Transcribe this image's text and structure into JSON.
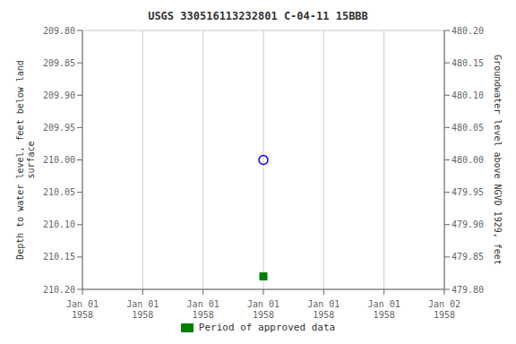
{
  "chart_data": {
    "type": "scatter",
    "title": "USGS 330516113232801 C-04-11 15BBB",
    "categories": [
      "Jan 01\n1958",
      "Jan 01\n1958",
      "Jan 01\n1958",
      "Jan 01\n1958",
      "Jan 01\n1958",
      "Jan 01\n1958",
      "Jan 02\n1958"
    ],
    "series": [
      {
        "color": "blue",
        "marker": "circle",
        "line_style": "none",
        "values": [
          null,
          null,
          null,
          210.0,
          null,
          null,
          null
        ]
      },
      {
        "name": "Period of approved data",
        "color": "green",
        "marker": "square",
        "line_style": "none",
        "values": [
          null,
          null,
          null,
          210.18,
          null,
          null,
          null
        ]
      }
    ],
    "y_label": "Depth to water level, feet below land\n surface",
    "y2_label": "Groundwater level above NGVD 1929, feet",
    "ylim": [
      210.2,
      209.8
    ],
    "yticks": [
      {
        "value": 209.8,
        "label": "209.80"
      },
      {
        "value": 209.85,
        "label": "209.85"
      },
      {
        "value": 209.9,
        "label": "209.90"
      },
      {
        "value": 209.95,
        "label": "209.95"
      },
      {
        "value": 210.0,
        "label": "210.00"
      },
      {
        "value": 210.05,
        "label": "210.05"
      },
      {
        "value": 210.1,
        "label": "210.10"
      },
      {
        "value": 210.15,
        "label": "210.15"
      },
      {
        "value": 210.2,
        "label": "210.20"
      }
    ],
    "y2lim": [
      479.8,
      480.2
    ],
    "y2ticks": [
      {
        "value": 480.2,
        "label": "480.20"
      },
      {
        "value": 480.15,
        "label": "480.15"
      },
      {
        "value": 480.1,
        "label": "480.10"
      },
      {
        "value": 480.05,
        "label": "480.05"
      },
      {
        "value": 480.0,
        "label": "480.00"
      },
      {
        "value": 479.95,
        "label": "479.95"
      },
      {
        "value": 479.9,
        "label": "479.90"
      },
      {
        "value": 479.85,
        "label": "479.85"
      },
      {
        "value": 479.8,
        "label": "479.80"
      }
    ],
    "grid": true,
    "legend": "bottom"
  }
}
